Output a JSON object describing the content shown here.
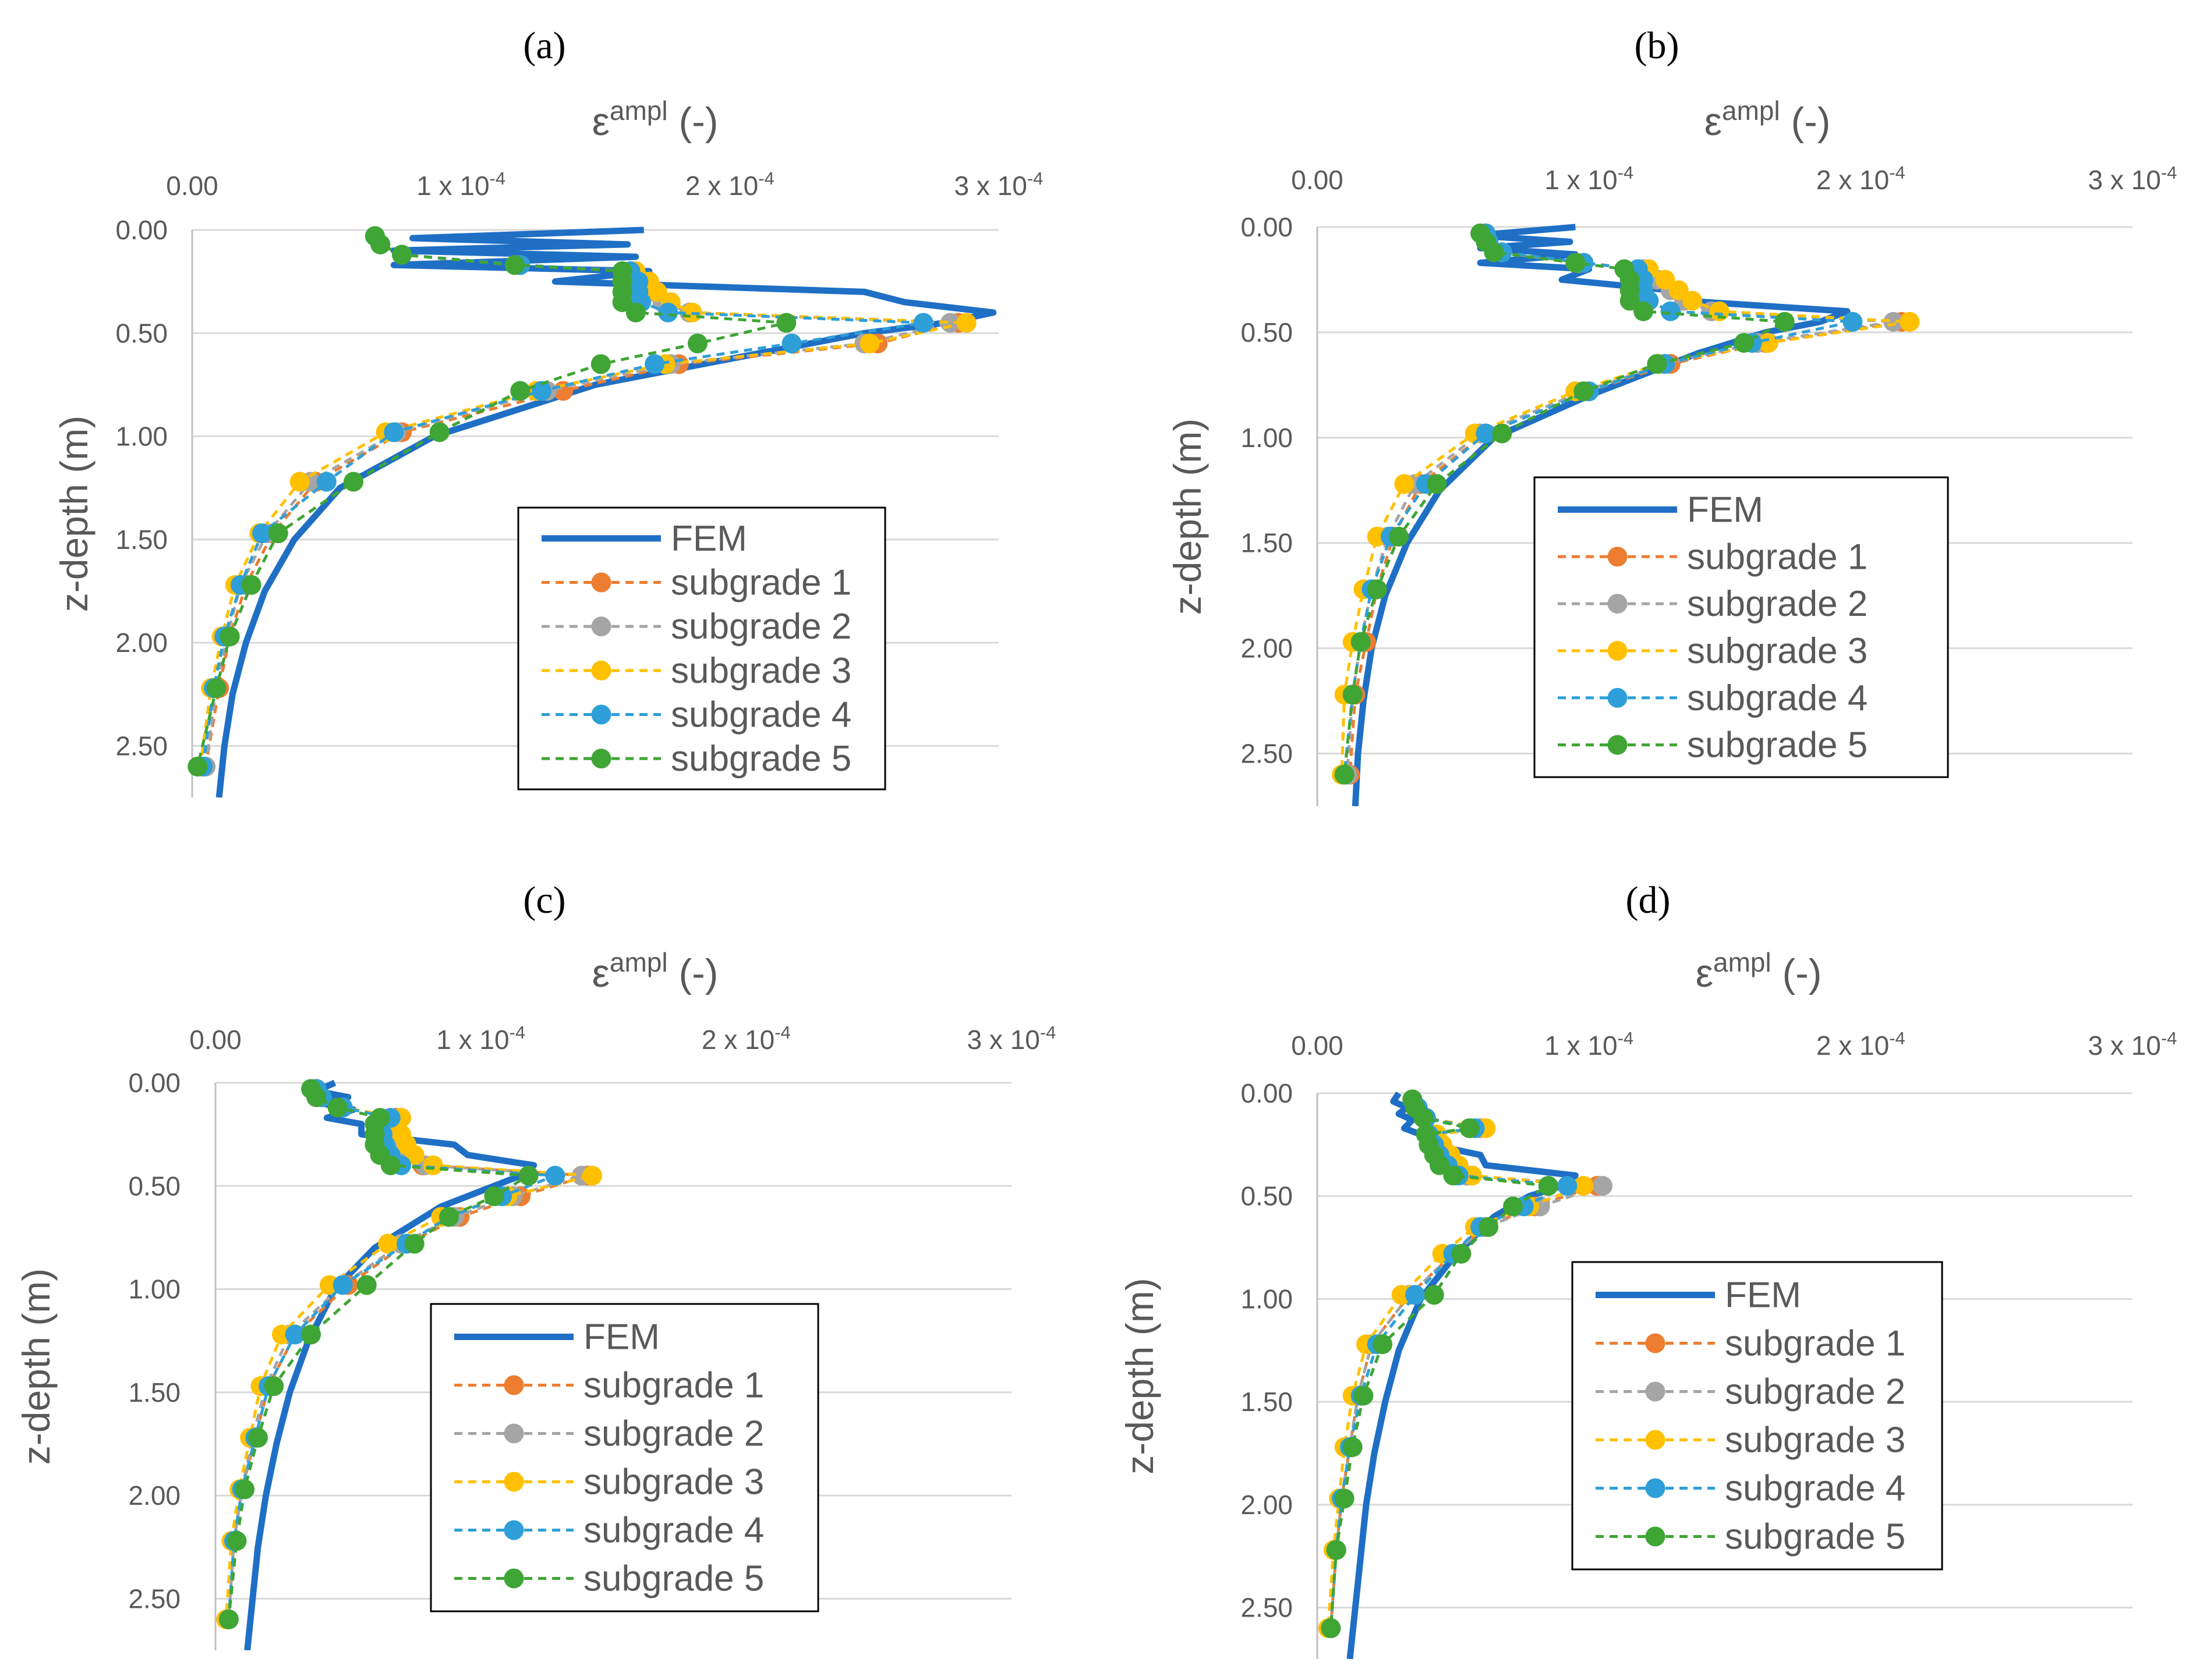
{
  "figure": {
    "x_ticks": [
      {
        "value": 0,
        "label": "0.00"
      },
      {
        "value": 1,
        "label": "1 x 10",
        "sup": "-4"
      },
      {
        "value": 2,
        "label": "2 x 10",
        "sup": "-4"
      },
      {
        "value": 3,
        "label": "3 x 10",
        "sup": "-4"
      }
    ],
    "y_ticks": [
      "0.00",
      "0.50",
      "1.00",
      "1.50",
      "2.00",
      "2.50"
    ],
    "colors": {
      "FEM": "#1f6fc5",
      "subgrade 1": "#ed7d31",
      "subgrade 2": "#a5a5a5",
      "subgrade 3": "#ffc000",
      "subgrade 4": "#2e9fd8",
      "subgrade 5": "#3fa535"
    }
  },
  "chart_data": [
    {
      "panel": "(a)",
      "type": "line",
      "x_title": "ε",
      "x_title_sup": "ampl",
      "x_title_suffix": " (-)",
      "ylabel": "z-depth (m)",
      "x_unit": "1e-4",
      "xlim": [
        0,
        3
      ],
      "ylim": [
        2.75,
        0
      ],
      "legend": [
        "FEM",
        "subgrade 1",
        "subgrade 2",
        "subgrade 3",
        "subgrade 4",
        "subgrade 5"
      ],
      "fem": {
        "name": "FEM",
        "points": [
          [
            1.68,
            0.0
          ],
          [
            0.82,
            0.04
          ],
          [
            1.62,
            0.07
          ],
          [
            0.75,
            0.1
          ],
          [
            1.65,
            0.13
          ],
          [
            0.75,
            0.17
          ],
          [
            1.7,
            0.2
          ],
          [
            1.35,
            0.25
          ],
          [
            2.5,
            0.3
          ],
          [
            2.65,
            0.35
          ],
          [
            2.98,
            0.4
          ],
          [
            2.8,
            0.45
          ],
          [
            2.5,
            0.5
          ],
          [
            2.1,
            0.6
          ],
          [
            1.5,
            0.75
          ],
          [
            0.9,
            1.0
          ],
          [
            0.55,
            1.25
          ],
          [
            0.38,
            1.5
          ],
          [
            0.27,
            1.75
          ],
          [
            0.2,
            2.0
          ],
          [
            0.15,
            2.25
          ],
          [
            0.12,
            2.5
          ],
          [
            0.1,
            2.75
          ]
        ]
      },
      "depths": [
        0.03,
        0.07,
        0.12,
        0.17,
        0.2,
        0.25,
        0.3,
        0.35,
        0.4,
        0.45,
        0.55,
        0.65,
        0.78,
        0.98,
        1.22,
        1.47,
        1.72,
        1.97,
        2.22,
        2.6
      ],
      "series": [
        {
          "name": "subgrade 1",
          "values": [
            0.68,
            0.7,
            0.78,
            1.22,
            1.63,
            1.68,
            1.7,
            1.75,
            1.85,
            2.85,
            2.55,
            1.81,
            1.38,
            0.78,
            0.46,
            0.3,
            0.2,
            0.14,
            0.1,
            0.05
          ]
        },
        {
          "name": "subgrade 2",
          "values": [
            0.68,
            0.7,
            0.78,
            1.22,
            1.63,
            1.68,
            1.7,
            1.75,
            1.85,
            2.82,
            2.5,
            1.78,
            1.32,
            0.76,
            0.44,
            0.28,
            0.18,
            0.13,
            0.09,
            0.05
          ]
        },
        {
          "name": "subgrade 3",
          "values": [
            0.68,
            0.7,
            0.78,
            1.2,
            1.65,
            1.7,
            1.73,
            1.78,
            1.86,
            2.88,
            2.52,
            1.76,
            1.28,
            0.72,
            0.4,
            0.25,
            0.16,
            0.11,
            0.07,
            0.03
          ]
        },
        {
          "name": "subgrade 4",
          "values": [
            0.68,
            0.7,
            0.78,
            1.22,
            1.63,
            1.66,
            1.66,
            1.67,
            1.77,
            2.72,
            2.23,
            1.72,
            1.3,
            0.75,
            0.5,
            0.26,
            0.18,
            0.12,
            0.08,
            0.04
          ]
        },
        {
          "name": "subgrade 5",
          "values": [
            0.68,
            0.7,
            0.78,
            1.2,
            1.6,
            1.6,
            1.6,
            1.6,
            1.65,
            2.21,
            1.88,
            1.52,
            1.22,
            0.92,
            0.6,
            0.32,
            0.22,
            0.14,
            0.09,
            0.02
          ]
        }
      ]
    },
    {
      "panel": "(b)",
      "type": "line",
      "x_title": "ε",
      "x_title_sup": "ampl",
      "x_title_suffix": " (-)",
      "ylabel": "z-depth (m)",
      "x_unit": "1e-4",
      "xlim": [
        0,
        3
      ],
      "ylim": [
        2.75,
        0
      ],
      "legend": [
        "FEM",
        "subgrade 1",
        "subgrade 2",
        "subgrade 3",
        "subgrade 4",
        "subgrade 5"
      ],
      "fem": {
        "name": "FEM",
        "points": [
          [
            0.95,
            0.0
          ],
          [
            0.58,
            0.04
          ],
          [
            0.93,
            0.07
          ],
          [
            0.6,
            0.1
          ],
          [
            0.95,
            0.13
          ],
          [
            0.6,
            0.17
          ],
          [
            1.0,
            0.2
          ],
          [
            0.9,
            0.25
          ],
          [
            1.3,
            0.3
          ],
          [
            1.35,
            0.35
          ],
          [
            1.95,
            0.4
          ],
          [
            1.85,
            0.45
          ],
          [
            1.65,
            0.5
          ],
          [
            1.4,
            0.6
          ],
          [
            1.0,
            0.8
          ],
          [
            0.65,
            1.0
          ],
          [
            0.45,
            1.25
          ],
          [
            0.33,
            1.5
          ],
          [
            0.25,
            1.75
          ],
          [
            0.2,
            2.0
          ],
          [
            0.17,
            2.25
          ],
          [
            0.15,
            2.5
          ],
          [
            0.14,
            2.75
          ]
        ]
      },
      "depths": [
        0.03,
        0.07,
        0.12,
        0.17,
        0.2,
        0.25,
        0.3,
        0.35,
        0.4,
        0.45,
        0.55,
        0.65,
        0.78,
        0.98,
        1.22,
        1.47,
        1.72,
        1.97,
        2.22,
        2.6
      ],
      "series": [
        {
          "name": "subgrade 1",
          "values": [
            0.62,
            0.63,
            0.68,
            0.98,
            1.2,
            1.25,
            1.3,
            1.35,
            1.45,
            2.15,
            1.65,
            1.3,
            1.0,
            0.62,
            0.38,
            0.28,
            0.22,
            0.18,
            0.14,
            0.12
          ]
        },
        {
          "name": "subgrade 2",
          "values": [
            0.62,
            0.63,
            0.68,
            0.98,
            1.2,
            1.25,
            1.3,
            1.35,
            1.45,
            2.12,
            1.62,
            1.28,
            0.98,
            0.6,
            0.36,
            0.26,
            0.2,
            0.16,
            0.13,
            0.11
          ]
        },
        {
          "name": "subgrade 3",
          "values": [
            0.62,
            0.63,
            0.68,
            0.96,
            1.22,
            1.28,
            1.33,
            1.38,
            1.48,
            2.18,
            1.66,
            1.26,
            0.95,
            0.58,
            0.32,
            0.22,
            0.17,
            0.13,
            0.1,
            0.09
          ]
        },
        {
          "name": "subgrade 4",
          "values": [
            0.62,
            0.63,
            0.68,
            0.98,
            1.18,
            1.2,
            1.2,
            1.22,
            1.3,
            1.97,
            1.6,
            1.28,
            1.0,
            0.62,
            0.4,
            0.27,
            0.2,
            0.16,
            0.13,
            0.1
          ]
        },
        {
          "name": "subgrade 5",
          "values": [
            0.6,
            0.62,
            0.65,
            0.95,
            1.13,
            1.15,
            1.15,
            1.15,
            1.2,
            1.72,
            1.57,
            1.25,
            0.98,
            0.68,
            0.44,
            0.3,
            0.22,
            0.16,
            0.13,
            0.1
          ]
        }
      ]
    },
    {
      "panel": "(c)",
      "type": "line",
      "x_title": "ε",
      "x_title_sup": "ampl",
      "x_title_suffix": " (-)",
      "ylabel": "z-depth (m)",
      "x_unit": "1e-4",
      "xlim": [
        0,
        3
      ],
      "ylim": [
        2.75,
        0
      ],
      "legend": [
        "FEM",
        "subgrade 1",
        "subgrade 2",
        "subgrade 3",
        "subgrade 4",
        "subgrade 5"
      ],
      "fem": {
        "name": "FEM",
        "points": [
          [
            0.45,
            0.0
          ],
          [
            0.38,
            0.04
          ],
          [
            0.5,
            0.07
          ],
          [
            0.4,
            0.1
          ],
          [
            0.52,
            0.13
          ],
          [
            0.42,
            0.17
          ],
          [
            0.55,
            0.2
          ],
          [
            0.55,
            0.25
          ],
          [
            0.9,
            0.3
          ],
          [
            0.95,
            0.35
          ],
          [
            1.2,
            0.4
          ],
          [
            1.15,
            0.45
          ],
          [
            1.05,
            0.5
          ],
          [
            0.85,
            0.6
          ],
          [
            0.6,
            0.8
          ],
          [
            0.45,
            1.0
          ],
          [
            0.35,
            1.25
          ],
          [
            0.28,
            1.5
          ],
          [
            0.23,
            1.75
          ],
          [
            0.19,
            2.0
          ],
          [
            0.16,
            2.25
          ],
          [
            0.14,
            2.5
          ],
          [
            0.12,
            2.75
          ]
        ]
      },
      "depths": [
        0.03,
        0.07,
        0.12,
        0.17,
        0.2,
        0.25,
        0.3,
        0.35,
        0.4,
        0.45,
        0.55,
        0.65,
        0.78,
        0.98,
        1.22,
        1.47,
        1.72,
        1.97,
        2.22,
        2.6
      ],
      "series": [
        {
          "name": "subgrade 1",
          "values": [
            0.38,
            0.4,
            0.48,
            0.68,
            0.65,
            0.66,
            0.68,
            0.72,
            0.78,
            1.4,
            1.15,
            0.92,
            0.72,
            0.5,
            0.3,
            0.2,
            0.15,
            0.1,
            0.07,
            0.05
          ]
        },
        {
          "name": "subgrade 2",
          "values": [
            0.38,
            0.4,
            0.48,
            0.7,
            0.66,
            0.67,
            0.69,
            0.73,
            0.79,
            1.38,
            1.12,
            0.9,
            0.7,
            0.48,
            0.28,
            0.19,
            0.14,
            0.1,
            0.07,
            0.05
          ]
        },
        {
          "name": "subgrade 3",
          "values": [
            0.38,
            0.4,
            0.48,
            0.7,
            0.68,
            0.7,
            0.72,
            0.75,
            0.82,
            1.42,
            1.1,
            0.85,
            0.65,
            0.43,
            0.25,
            0.17,
            0.13,
            0.09,
            0.06,
            0.04
          ]
        },
        {
          "name": "subgrade 4",
          "values": [
            0.38,
            0.4,
            0.48,
            0.66,
            0.62,
            0.63,
            0.64,
            0.66,
            0.7,
            1.28,
            1.08,
            0.88,
            0.72,
            0.48,
            0.3,
            0.2,
            0.15,
            0.1,
            0.07,
            0.05
          ]
        },
        {
          "name": "subgrade 5",
          "values": [
            0.36,
            0.38,
            0.46,
            0.62,
            0.6,
            0.6,
            0.6,
            0.62,
            0.66,
            1.18,
            1.05,
            0.88,
            0.75,
            0.57,
            0.36,
            0.22,
            0.16,
            0.11,
            0.08,
            0.05
          ]
        }
      ]
    },
    {
      "panel": "(d)",
      "type": "line",
      "x_title": "ε",
      "x_title_sup": "ampl",
      "x_title_suffix": " (-)",
      "ylabel": "z-depth (m)",
      "x_unit": "1e-4",
      "xlim": [
        0,
        3
      ],
      "ylim": [
        2.75,
        0
      ],
      "legend": [
        "FEM",
        "subgrade 1",
        "subgrade 2",
        "subgrade 3",
        "subgrade 4",
        "subgrade 5"
      ],
      "fem": {
        "name": "FEM",
        "points": [
          [
            0.3,
            0.0
          ],
          [
            0.28,
            0.04
          ],
          [
            0.33,
            0.07
          ],
          [
            0.3,
            0.1
          ],
          [
            0.35,
            0.13
          ],
          [
            0.32,
            0.17
          ],
          [
            0.38,
            0.2
          ],
          [
            0.42,
            0.25
          ],
          [
            0.6,
            0.3
          ],
          [
            0.62,
            0.35
          ],
          [
            0.95,
            0.4
          ],
          [
            0.9,
            0.45
          ],
          [
            0.78,
            0.5
          ],
          [
            0.65,
            0.6
          ],
          [
            0.5,
            0.8
          ],
          [
            0.38,
            1.0
          ],
          [
            0.3,
            1.25
          ],
          [
            0.25,
            1.5
          ],
          [
            0.21,
            1.75
          ],
          [
            0.18,
            2.0
          ],
          [
            0.16,
            2.25
          ],
          [
            0.14,
            2.5
          ],
          [
            0.12,
            2.75
          ]
        ]
      },
      "depths": [
        0.03,
        0.07,
        0.12,
        0.17,
        0.2,
        0.25,
        0.3,
        0.35,
        0.4,
        0.45,
        0.55,
        0.65,
        0.78,
        0.98,
        1.22,
        1.47,
        1.72,
        1.97,
        2.22,
        2.6
      ],
      "series": [
        {
          "name": "subgrade 1",
          "values": [
            0.35,
            0.37,
            0.4,
            0.6,
            0.42,
            0.44,
            0.47,
            0.5,
            0.55,
            1.03,
            0.8,
            0.62,
            0.5,
            0.34,
            0.2,
            0.15,
            0.12,
            0.09,
            0.07,
            0.05
          ]
        },
        {
          "name": "subgrade 2",
          "values": [
            0.35,
            0.37,
            0.4,
            0.6,
            0.42,
            0.44,
            0.47,
            0.5,
            0.55,
            1.05,
            0.82,
            0.62,
            0.5,
            0.34,
            0.2,
            0.15,
            0.12,
            0.09,
            0.07,
            0.05
          ]
        },
        {
          "name": "subgrade 3",
          "values": [
            0.35,
            0.37,
            0.4,
            0.62,
            0.44,
            0.46,
            0.49,
            0.52,
            0.57,
            0.98,
            0.78,
            0.58,
            0.46,
            0.31,
            0.18,
            0.13,
            0.1,
            0.08,
            0.06,
            0.04
          ]
        },
        {
          "name": "subgrade 4",
          "values": [
            0.35,
            0.37,
            0.4,
            0.58,
            0.41,
            0.43,
            0.45,
            0.48,
            0.52,
            0.92,
            0.76,
            0.6,
            0.5,
            0.36,
            0.22,
            0.16,
            0.12,
            0.09,
            0.07,
            0.05
          ]
        },
        {
          "name": "subgrade 5",
          "values": [
            0.35,
            0.36,
            0.39,
            0.56,
            0.4,
            0.41,
            0.43,
            0.45,
            0.5,
            0.85,
            0.72,
            0.63,
            0.53,
            0.43,
            0.24,
            0.17,
            0.13,
            0.1,
            0.07,
            0.05
          ]
        }
      ]
    }
  ]
}
